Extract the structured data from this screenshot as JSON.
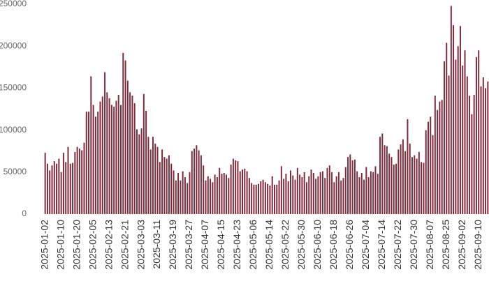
{
  "chart_data": {
    "type": "bar",
    "color": "#7e2a3c",
    "ylim": [
      0,
      250000
    ],
    "yticks": [
      0,
      50000,
      100000,
      150000,
      200000,
      250000
    ],
    "grid": false,
    "categories": [
      "2025-01-02",
      null,
      null,
      null,
      null,
      null,
      null,
      "2025-01-10",
      null,
      null,
      null,
      null,
      null,
      null,
      "2025-01-20",
      null,
      null,
      null,
      null,
      null,
      null,
      "2025-02-05",
      null,
      null,
      null,
      null,
      null,
      null,
      "2025-02-13",
      null,
      null,
      null,
      null,
      null,
      null,
      "2025-02-21",
      null,
      null,
      null,
      null,
      null,
      null,
      "2025-03-03",
      null,
      null,
      null,
      null,
      null,
      null,
      "2025-03-11",
      null,
      null,
      null,
      null,
      null,
      null,
      "2025-03-19",
      null,
      null,
      null,
      null,
      null,
      null,
      "2025-03-27",
      null,
      null,
      null,
      null,
      null,
      null,
      "2025-04-07",
      null,
      null,
      null,
      null,
      null,
      null,
      "2025-04-15",
      null,
      null,
      null,
      null,
      null,
      null,
      "2025-04-23",
      null,
      null,
      null,
      null,
      null,
      null,
      "2025-05-06",
      null,
      null,
      null,
      null,
      null,
      null,
      "2025-05-14",
      null,
      null,
      null,
      null,
      null,
      null,
      "2025-05-22",
      null,
      null,
      null,
      null,
      null,
      null,
      "2025-05-30",
      null,
      null,
      null,
      null,
      null,
      null,
      "2025-06-10",
      null,
      null,
      null,
      null,
      null,
      null,
      "2025-06-18",
      null,
      null,
      null,
      null,
      null,
      null,
      "2025-06-26",
      null,
      null,
      null,
      null,
      null,
      null,
      "2025-07-04",
      null,
      null,
      null,
      null,
      null,
      null,
      "2025-07-14",
      null,
      null,
      null,
      null,
      null,
      null,
      "2025-07-22",
      null,
      null,
      null,
      null,
      null,
      null,
      "2025-07-30",
      null,
      null,
      null,
      null,
      null,
      null,
      "2025-08-07",
      null,
      null,
      null,
      null,
      null,
      null,
      "2025-08-25",
      null,
      null,
      null,
      null,
      null,
      null,
      "2025-09-02",
      null,
      null,
      null,
      null,
      null,
      null,
      "2025-09-10",
      null,
      null,
      null,
      null
    ],
    "values": [
      73000,
      60000,
      52000,
      58000,
      63000,
      60000,
      66000,
      50000,
      73000,
      62000,
      80000,
      60000,
      61000,
      74000,
      80000,
      78000,
      76000,
      85000,
      122000,
      122000,
      164000,
      130000,
      116000,
      122000,
      134000,
      140000,
      169000,
      145000,
      138000,
      130000,
      128000,
      135000,
      142000,
      130000,
      192000,
      183000,
      159000,
      145000,
      141000,
      132000,
      101000,
      95000,
      102000,
      143000,
      123000,
      92000,
      77000,
      92000,
      84000,
      80000,
      62000,
      77000,
      68000,
      66000,
      70000,
      60000,
      52000,
      40000,
      49000,
      40000,
      51000,
      44000,
      37000,
      50000,
      75000,
      78000,
      82000,
      76000,
      70000,
      58000,
      40000,
      45000,
      42000,
      38000,
      47000,
      44000,
      55000,
      48000,
      49000,
      47000,
      43000,
      59000,
      66000,
      64000,
      63000,
      51000,
      53000,
      54000,
      51000,
      43000,
      37000,
      35000,
      35000,
      36000,
      39000,
      41000,
      38000,
      36000,
      34000,
      45000,
      35000,
      35000,
      40000,
      57000,
      42000,
      48000,
      39000,
      52000,
      46000,
      41000,
      55000,
      47000,
      44000,
      50000,
      38000,
      45000,
      53000,
      49000,
      42000,
      45000,
      50000,
      51000,
      43000,
      55000,
      58000,
      50000,
      38000,
      45000,
      50000,
      40000,
      43000,
      56000,
      68000,
      71000,
      64000,
      65000,
      51000,
      44000,
      49000,
      41000,
      56000,
      44000,
      51000,
      50000,
      57000,
      48000,
      92000,
      96000,
      82000,
      81000,
      72000,
      68000,
      59000,
      60000,
      77000,
      83000,
      89000,
      75000,
      113000,
      84000,
      68000,
      70000,
      66000,
      74000,
      62000,
      61000,
      100000,
      110000,
      116000,
      94000,
      141000,
      124000,
      134000,
      136000,
      182000,
      204000,
      165000,
      248000,
      225000,
      184000,
      200000,
      224000,
      177000,
      195000,
      164000,
      141000,
      119000,
      142000,
      187000,
      195000,
      152000,
      163000,
      150000,
      158000
    ]
  }
}
